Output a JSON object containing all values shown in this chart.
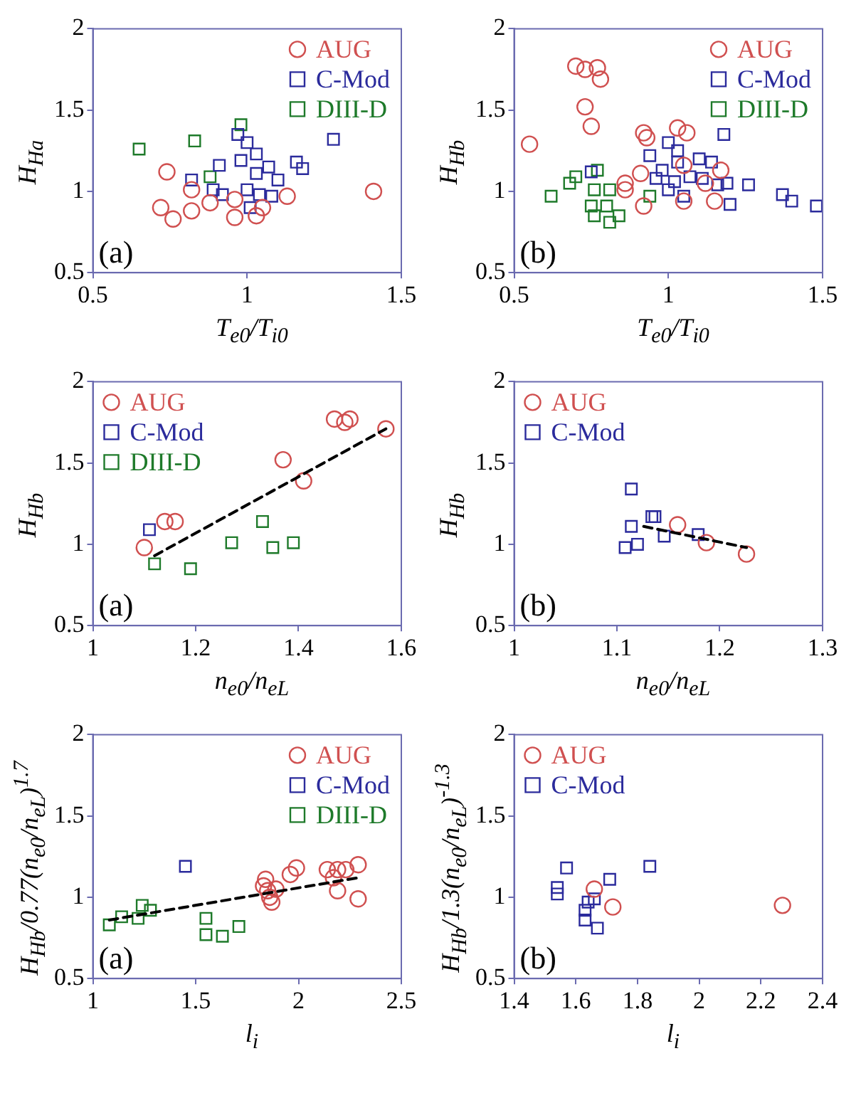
{
  "chart_data": [
    {
      "type": "scatter",
      "xlabel": "T$_{e0}$/T$_{i0}$",
      "ylabel": "H$_{Ha}$",
      "xlim": [
        0.5,
        1.5
      ],
      "xticks": [
        0.5,
        1,
        1.5
      ],
      "ylim": [
        0.5,
        2
      ],
      "yticks": [
        0.5,
        1,
        1.5,
        2
      ],
      "legend": "top right",
      "annotations": [
        "(a)"
      ],
      "series": [
        {
          "name": "AUG",
          "color": "#d05050",
          "marker": "circle",
          "x": [
            0.74,
            0.72,
            0.76,
            0.82,
            0.82,
            0.88,
            0.96,
            0.96,
            1.03,
            1.13,
            1.41,
            1.05
          ],
          "values": [
            1.12,
            0.9,
            0.83,
            0.88,
            1.01,
            0.93,
            0.84,
            0.95,
            0.85,
            0.97,
            1.0,
            0.9
          ]
        },
        {
          "name": "C-Mod",
          "color": "#2b2b9c",
          "marker": "square",
          "x": [
            0.97,
            1.0,
            1.03,
            0.98,
            0.91,
            0.82,
            0.89,
            0.92,
            1.0,
            1.03,
            1.07,
            1.1,
            1.04,
            1.01,
            1.16,
            1.18,
            1.28,
            1.08
          ],
          "values": [
            1.35,
            1.3,
            1.23,
            1.19,
            1.16,
            1.07,
            1.01,
            0.98,
            1.01,
            1.11,
            1.15,
            1.07,
            0.98,
            0.9,
            1.18,
            1.14,
            1.32,
            0.97
          ]
        },
        {
          "name": "DIII-D",
          "color": "#1e7a2a",
          "marker": "square",
          "x": [
            0.65,
            0.83,
            0.98,
            0.88
          ],
          "values": [
            1.26,
            1.31,
            1.41,
            1.09
          ]
        }
      ]
    },
    {
      "type": "scatter",
      "xlabel": "T$_{e0}$/T$_{i0}$",
      "ylabel": "H$_{Hb}$",
      "xlim": [
        0.5,
        1.5
      ],
      "xticks": [
        0.5,
        1,
        1.5
      ],
      "ylim": [
        0.5,
        2
      ],
      "yticks": [
        0.5,
        1,
        1.5,
        2
      ],
      "legend": "top right",
      "annotations": [
        "(b)"
      ],
      "series": [
        {
          "name": "AUG",
          "color": "#d05050",
          "marker": "circle",
          "x": [
            0.55,
            0.7,
            0.73,
            0.77,
            0.78,
            0.73,
            0.75,
            0.86,
            0.86,
            0.92,
            0.93,
            0.91,
            0.92,
            1.03,
            1.06,
            1.05,
            1.12,
            1.17,
            1.15,
            1.05
          ],
          "values": [
            1.29,
            1.77,
            1.75,
            1.76,
            1.69,
            1.52,
            1.4,
            1.05,
            1.01,
            1.36,
            1.33,
            1.11,
            0.91,
            1.39,
            1.36,
            1.16,
            1.05,
            1.13,
            0.94,
            0.94
          ]
        },
        {
          "name": "C-Mod",
          "color": "#2b2b9c",
          "marker": "square",
          "x": [
            0.94,
            1.0,
            1.03,
            0.98,
            1.03,
            1.1,
            1.14,
            0.96,
            1.02,
            1.0,
            1.07,
            1.05,
            1.11,
            1.16,
            1.19,
            1.18,
            1.2,
            1.26,
            1.37,
            1.4,
            1.48,
            0.75
          ],
          "values": [
            1.22,
            1.3,
            1.25,
            1.13,
            1.18,
            1.2,
            1.18,
            1.08,
            1.06,
            1.01,
            1.09,
            0.97,
            1.08,
            1.04,
            1.05,
            1.35,
            0.92,
            1.04,
            0.98,
            0.94,
            0.91,
            1.12
          ]
        },
        {
          "name": "DIII-D",
          "color": "#1e7a2a",
          "marker": "square",
          "x": [
            0.62,
            0.68,
            0.7,
            0.77,
            0.76,
            0.75,
            0.76,
            0.81,
            0.8,
            0.84,
            0.81,
            0.94
          ],
          "values": [
            0.97,
            1.05,
            1.09,
            1.13,
            1.01,
            0.91,
            0.85,
            1.01,
            0.91,
            0.85,
            0.81,
            0.97
          ]
        }
      ]
    },
    {
      "type": "scatter",
      "xlabel": "n$_{e0}$/n$_{eL}$",
      "ylabel": "H$_{Hb}$",
      "xlim": [
        1,
        1.6
      ],
      "xticks": [
        1,
        1.2,
        1.4,
        1.6
      ],
      "ylim": [
        0.5,
        2
      ],
      "yticks": [
        0.5,
        1,
        1.5,
        2
      ],
      "legend": "top left",
      "annotations": [
        "(a)"
      ],
      "series": [
        {
          "name": "AUG",
          "color": "#d05050",
          "marker": "circle",
          "x": [
            1.1,
            1.14,
            1.16,
            1.37,
            1.41,
            1.47,
            1.49,
            1.5,
            1.57
          ],
          "values": [
            0.98,
            1.14,
            1.14,
            1.52,
            1.39,
            1.77,
            1.75,
            1.77,
            1.71
          ]
        },
        {
          "name": "C-Mod",
          "color": "#2b2b9c",
          "marker": "square",
          "x": [
            1.11
          ],
          "values": [
            1.09
          ]
        },
        {
          "name": "DIII-D",
          "color": "#1e7a2a",
          "marker": "square",
          "x": [
            1.12,
            1.19,
            1.27,
            1.33,
            1.35,
            1.39
          ],
          "values": [
            0.88,
            0.85,
            1.01,
            1.14,
            0.98,
            1.01
          ]
        },
        {
          "type": "line",
          "color": "#000000",
          "marker": "none",
          "line_style": "dashed",
          "x": [
            1.12,
            1.57
          ],
          "values": [
            0.93,
            1.71
          ]
        }
      ]
    },
    {
      "type": "scatter",
      "xlabel": "n$_{e0}$/n$_{eL}$",
      "ylabel": "H$_{Hb}$",
      "xlim": [
        1,
        1.3
      ],
      "xticks": [
        1,
        1.1,
        1.2,
        1.3
      ],
      "ylim": [
        0.5,
        2
      ],
      "yticks": [
        0.5,
        1,
        1.5,
        2
      ],
      "legend": "top left",
      "annotations": [
        "(b)"
      ],
      "series": [
        {
          "name": "AUG",
          "color": "#d05050",
          "marker": "circle",
          "x": [
            1.159,
            1.187,
            1.226
          ],
          "values": [
            1.12,
            1.01,
            0.94
          ]
        },
        {
          "name": "C-Mod",
          "color": "#2b2b9c",
          "marker": "square",
          "x": [
            1.114,
            1.114,
            1.108,
            1.12,
            1.134,
            1.137,
            1.146,
            1.179
          ],
          "values": [
            1.34,
            1.11,
            0.98,
            1.0,
            1.17,
            1.17,
            1.05,
            1.06
          ]
        },
        {
          "type": "line",
          "color": "#000000",
          "marker": "none",
          "line_style": "dashed",
          "x": [
            1.126,
            1.226
          ],
          "values": [
            1.11,
            0.98
          ]
        }
      ]
    },
    {
      "type": "scatter",
      "xlabel": "l$_{i}$",
      "ylabel": "H$_{Hb}$/0.77(n$_{e0}$/n$_{eL}$)$^{1.7}$",
      "xlim": [
        1,
        2.5
      ],
      "xticks": [
        1,
        1.5,
        2,
        2.5
      ],
      "ylim": [
        0.5,
        2
      ],
      "yticks": [
        0.5,
        1,
        1.5,
        2
      ],
      "legend": "top right",
      "annotations": [
        "(a)"
      ],
      "series": [
        {
          "name": "AUG",
          "color": "#d05050",
          "marker": "circle",
          "x": [
            1.83,
            1.84,
            1.85,
            1.86,
            1.87,
            1.96,
            1.99,
            2.14,
            2.19,
            2.23,
            2.29,
            2.17,
            2.19,
            2.29,
            1.89
          ],
          "values": [
            1.07,
            1.11,
            1.04,
            1.0,
            0.97,
            1.14,
            1.18,
            1.17,
            1.17,
            1.17,
            1.2,
            1.12,
            1.04,
            0.99,
            1.05
          ]
        },
        {
          "name": "C-Mod",
          "color": "#2b2b9c",
          "marker": "square",
          "x": [
            1.45
          ],
          "values": [
            1.19
          ]
        },
        {
          "name": "DIII-D",
          "color": "#1e7a2a",
          "marker": "square",
          "x": [
            1.08,
            1.14,
            1.22,
            1.24,
            1.28,
            1.55,
            1.55,
            1.63,
            1.71
          ],
          "values": [
            0.83,
            0.88,
            0.87,
            0.95,
            0.92,
            0.87,
            0.77,
            0.76,
            0.82
          ]
        },
        {
          "type": "line",
          "color": "#000000",
          "marker": "none",
          "line_style": "dashed",
          "x": [
            1.08,
            2.29
          ],
          "values": [
            0.86,
            1.12
          ]
        }
      ]
    },
    {
      "type": "scatter",
      "xlabel": "l$_{i}$",
      "ylabel": "H$_{Hb}$/1.3(n$_{e0}$/n$_{eL}$)$^{-1.3}$",
      "xlim": [
        1.4,
        2.4
      ],
      "xticks": [
        1.4,
        1.6,
        1.8,
        2,
        2.2,
        2.4
      ],
      "ylim": [
        0.5,
        2
      ],
      "yticks": [
        0.5,
        1,
        1.5,
        2
      ],
      "legend": "top left",
      "annotations": [
        "(b)"
      ],
      "series": [
        {
          "name": "AUG",
          "color": "#d05050",
          "marker": "circle",
          "x": [
            1.66,
            1.72,
            2.27
          ],
          "values": [
            1.05,
            0.94,
            0.95
          ]
        },
        {
          "name": "C-Mod",
          "color": "#2b2b9c",
          "marker": "square",
          "x": [
            1.54,
            1.54,
            1.57,
            1.63,
            1.63,
            1.64,
            1.66,
            1.67,
            1.71,
            1.84
          ],
          "values": [
            1.06,
            1.02,
            1.18,
            0.92,
            0.86,
            0.97,
            0.99,
            0.81,
            1.11,
            1.19
          ]
        }
      ]
    }
  ]
}
